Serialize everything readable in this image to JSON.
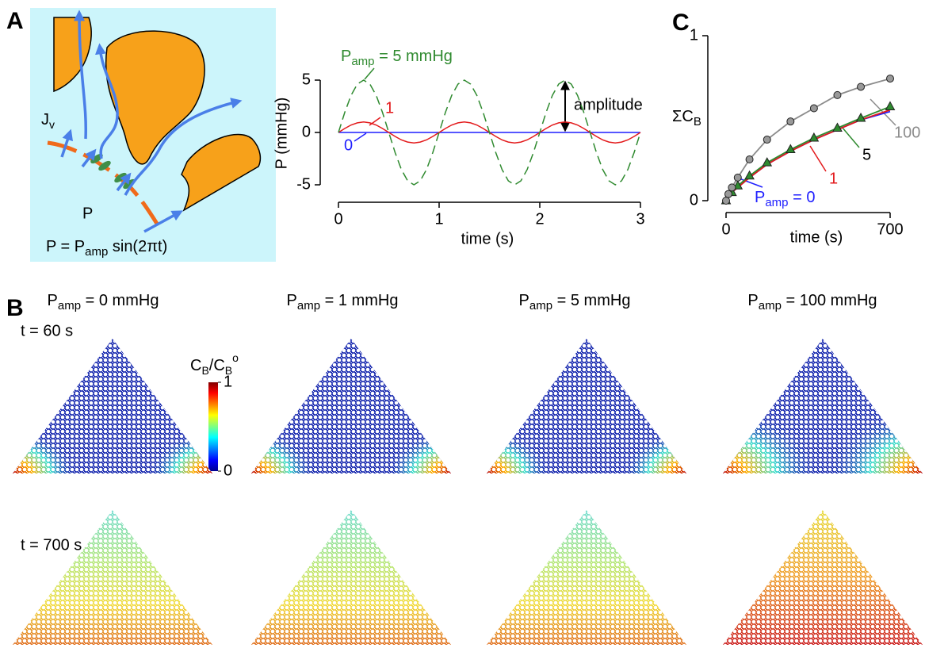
{
  "panel_labels": [
    "A",
    "B",
    "C"
  ],
  "panel_a": {
    "jv": {
      "main": "J",
      "sub": "v"
    },
    "p": "P",
    "formula": {
      "lhs": "P = P",
      "sub": "amp",
      "rest": " sin(2πt)"
    }
  },
  "chart_data": [
    {
      "type": "line",
      "x": [
        0,
        0.0625,
        0.125,
        0.1875,
        0.25,
        0.3125,
        0.375,
        0.4375,
        0.5,
        0.5625,
        0.625,
        0.6875,
        0.75,
        0.8125,
        0.875,
        0.9375,
        1,
        1.0625,
        1.125,
        1.1875,
        1.25,
        1.3125,
        1.375,
        1.4375,
        1.5,
        1.5625,
        1.625,
        1.6875,
        1.75,
        1.8125,
        1.875,
        1.9375,
        2,
        2.0625,
        2.125,
        2.1875,
        2.25,
        2.3125,
        2.375,
        2.4375,
        2.5,
        2.5625,
        2.625,
        2.6875,
        2.75,
        2.8125,
        2.875,
        2.9375,
        3
      ],
      "series": [
        {
          "name": "0",
          "color": "#1f1fff",
          "values": [
            0,
            0,
            0,
            0,
            0,
            0,
            0,
            0,
            0,
            0,
            0,
            0,
            0,
            0,
            0,
            0,
            0,
            0,
            0,
            0,
            0,
            0,
            0,
            0,
            0,
            0,
            0,
            0,
            0,
            0,
            0,
            0,
            0,
            0,
            0,
            0,
            0,
            0,
            0,
            0,
            0,
            0,
            0,
            0,
            0,
            0,
            0,
            0,
            0
          ]
        },
        {
          "name": "1",
          "color": "#e31a1c",
          "values": [
            0,
            0.38,
            0.71,
            0.92,
            1,
            0.92,
            0.71,
            0.38,
            0,
            -0.38,
            -0.71,
            -0.92,
            -1,
            -0.92,
            -0.71,
            -0.38,
            0,
            0.38,
            0.71,
            0.92,
            1,
            0.92,
            0.71,
            0.38,
            0,
            -0.38,
            -0.71,
            -0.92,
            -1,
            -0.92,
            -0.71,
            -0.38,
            0,
            0.38,
            0.71,
            0.92,
            1,
            0.92,
            0.71,
            0.38,
            0,
            -0.38,
            -0.71,
            -0.92,
            -1,
            -0.92,
            -0.71,
            -0.38,
            0
          ]
        },
        {
          "name": {
            "main": "P",
            "sub": "amp",
            "rest": " = 5 mmHg"
          },
          "color": "#2f8a2f",
          "dash": true,
          "values": [
            0,
            1.91,
            3.54,
            4.62,
            5,
            4.62,
            3.54,
            1.91,
            0,
            -1.91,
            -3.54,
            -4.62,
            -5,
            -4.62,
            -3.54,
            -1.91,
            0,
            1.91,
            3.54,
            4.62,
            5,
            4.62,
            3.54,
            1.91,
            0,
            -1.91,
            -3.54,
            -4.62,
            -5,
            -4.62,
            -3.54,
            -1.91,
            0,
            1.91,
            3.54,
            4.62,
            5,
            4.62,
            3.54,
            1.91,
            0,
            -1.91,
            -3.54,
            -4.62,
            -5,
            -4.62,
            -3.54,
            -1.91,
            0
          ]
        }
      ],
      "xlabel": "time (s)",
      "ylabel": "P (mmHg)",
      "xlim": [
        0,
        3
      ],
      "ylim": [
        -5,
        5
      ],
      "xticks": [
        0,
        1,
        2,
        3
      ],
      "yticks": [
        -5,
        0,
        5
      ],
      "annotations": [
        "amplitude"
      ]
    },
    {
      "type": "line",
      "series": [
        {
          "name": {
            "main": "P",
            "sub": "amp",
            "rest": " = 0"
          },
          "color": "#2020ff",
          "x": [
            0,
            25,
            50,
            100,
            175,
            275,
            375,
            475,
            575,
            700
          ],
          "values": [
            0,
            0.05,
            0.08,
            0.14,
            0.22,
            0.3,
            0.37,
            0.43,
            0.49,
            0.54
          ]
        },
        {
          "name": "1",
          "color": "#e31a1c",
          "x": [
            0,
            25,
            50,
            100,
            175,
            275,
            375,
            475,
            575,
            700
          ],
          "values": [
            0,
            0.05,
            0.08,
            0.14,
            0.22,
            0.3,
            0.37,
            0.43,
            0.49,
            0.55
          ]
        },
        {
          "name": "5",
          "color": "#2f8a2f",
          "marker": "triangle",
          "x": [
            0,
            25,
            50,
            100,
            175,
            275,
            375,
            475,
            575,
            700
          ],
          "values": [
            0,
            0.05,
            0.09,
            0.15,
            0.23,
            0.31,
            0.38,
            0.44,
            0.5,
            0.57
          ]
        },
        {
          "name": "100",
          "color": "#8c8c8c",
          "marker": "circle",
          "x": [
            0,
            10,
            25,
            50,
            100,
            175,
            275,
            375,
            475,
            575,
            700
          ],
          "values": [
            0,
            0.04,
            0.08,
            0.14,
            0.25,
            0.37,
            0.48,
            0.56,
            0.64,
            0.69,
            0.74
          ]
        }
      ],
      "xlabel": "time (s)",
      "ylabel": {
        "main": "ΣC",
        "sub": "B"
      },
      "xlim": [
        0,
        700
      ],
      "ylim": [
        0,
        1
      ],
      "xticks": [
        0,
        700
      ],
      "yticks": [
        0,
        1
      ]
    }
  ],
  "panel_b": {
    "columns": [
      {
        "main": "P",
        "sub": "amp",
        "rest": " = 0 mmHg"
      },
      {
        "main": "P",
        "sub": "amp",
        "rest": " = 1 mmHg"
      },
      {
        "main": "P",
        "sub": "amp",
        "rest": " = 5 mmHg"
      },
      {
        "main": "P",
        "sub": "amp",
        "rest": " = 100 mmHg"
      }
    ],
    "rows": [
      "t = 60 s",
      "t = 700 s"
    ],
    "colorbar": {
      "label": {
        "c1": "C",
        "s1": "B",
        "c2": "/C",
        "s2": "B",
        "sup": "o"
      },
      "range": [
        0,
        1
      ],
      "ticks": [
        0,
        1
      ]
    }
  }
}
